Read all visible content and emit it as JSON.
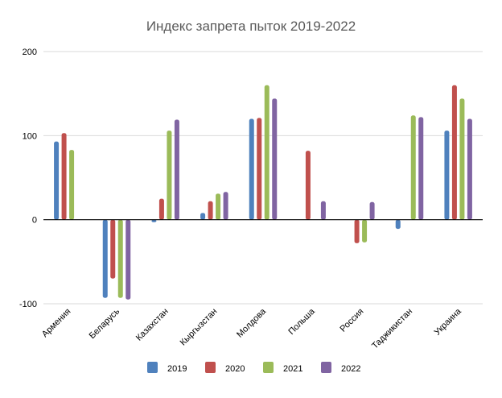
{
  "chart_data": {
    "type": "bar",
    "title": "Индекс запрета пыток 2019-2022",
    "xlabel": "",
    "ylabel": "",
    "ylim": [
      -100,
      200
    ],
    "yticks": [
      -100,
      0,
      100,
      200
    ],
    "grid": true,
    "legend_position": "bottom",
    "categories": [
      "Армения",
      "Беларусь",
      "Казахстан",
      "Кыргызстан",
      "Молдова",
      "Польша",
      "Россия",
      "Таджикистан",
      "Украина"
    ],
    "series": [
      {
        "name": "2019",
        "color": "#4F81BD",
        "values": [
          93,
          -93,
          -3,
          8,
          120,
          0,
          0,
          -11,
          106
        ]
      },
      {
        "name": "2020",
        "color": "#C0504D",
        "values": [
          103,
          -70,
          25,
          22,
          121,
          82,
          -28,
          0,
          160
        ]
      },
      {
        "name": "2021",
        "color": "#9BBB59",
        "values": [
          83,
          -93,
          106,
          31,
          160,
          0,
          -27,
          124,
          144
        ]
      },
      {
        "name": "2022",
        "color": "#8064A2",
        "values": [
          0,
          -95,
          119,
          33,
          144,
          22,
          21,
          122,
          120
        ]
      }
    ]
  }
}
